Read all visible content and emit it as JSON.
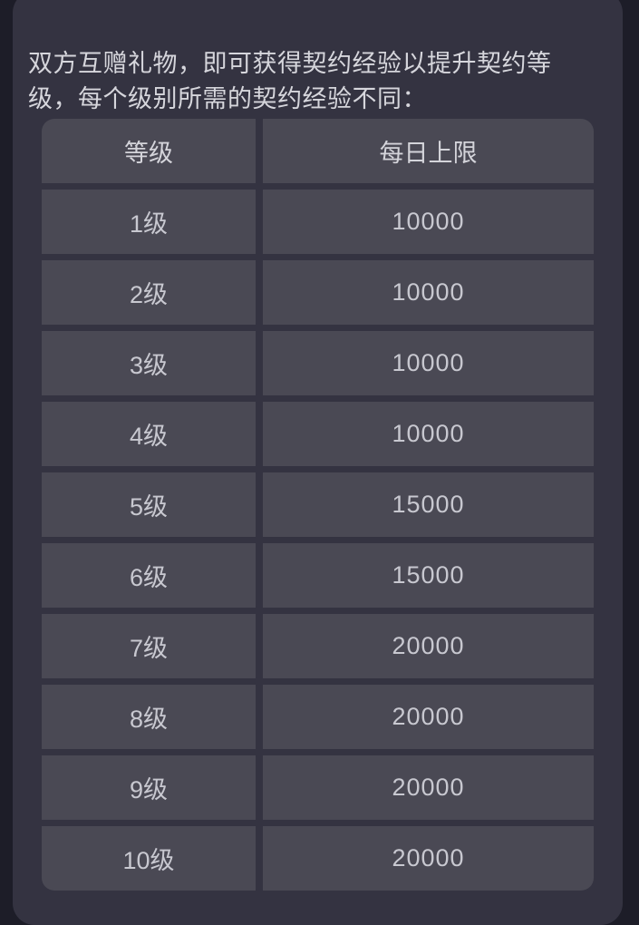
{
  "colors": {
    "outer_bg": "#1d1d28",
    "panel_bg": "#343341",
    "cell_bg": "#4a4954",
    "desc_text": "#d6d6dc",
    "header_text": "#d4d4da",
    "cell_text": "#c8c8d0"
  },
  "description": "双方互赠礼物，即可获得契约经验以提升契约等级，每个级别所需的契约经验不同：",
  "table": {
    "header": {
      "level": "等级",
      "limit": "每日上限"
    },
    "rows": [
      {
        "level": "1级",
        "limit": "10000"
      },
      {
        "level": "2级",
        "limit": "10000"
      },
      {
        "level": "3级",
        "limit": "10000"
      },
      {
        "level": "4级",
        "limit": "10000"
      },
      {
        "level": "5级",
        "limit": "15000"
      },
      {
        "level": "6级",
        "limit": "15000"
      },
      {
        "level": "7级",
        "limit": "20000"
      },
      {
        "level": "8级",
        "limit": "20000"
      },
      {
        "level": "9级",
        "limit": "20000"
      },
      {
        "level": "10级",
        "limit": "20000"
      }
    ]
  }
}
